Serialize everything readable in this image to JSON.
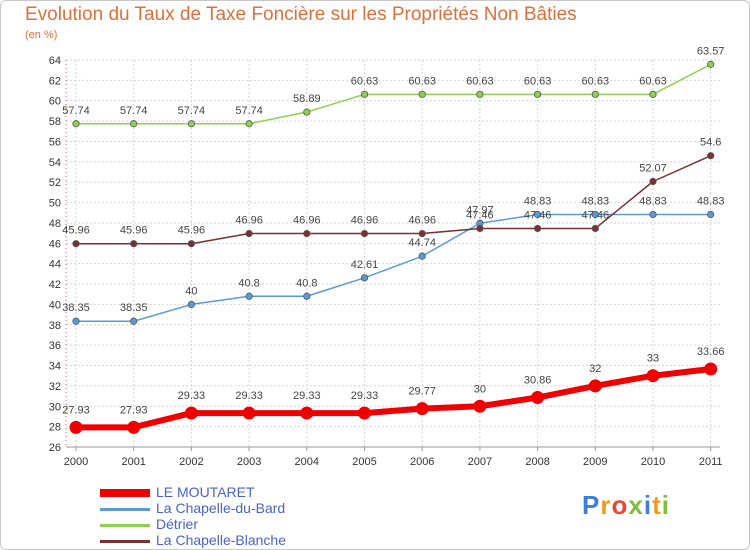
{
  "title": "Evolution du Taux de Taxe Foncière sur les Propriétés Non Bâties",
  "subtitle": "(en %)",
  "chart_data": {
    "type": "line",
    "title": "Evolution du Taux de Taxe Foncière sur les Propriétés Non Bâties",
    "ylabel": "(en %)",
    "xlabel": "",
    "x": [
      "2000",
      "2001",
      "2002",
      "2003",
      "2004",
      "2005",
      "2006",
      "2007",
      "2008",
      "2009",
      "2010",
      "2011"
    ],
    "ylim": [
      26,
      64
    ],
    "yticks": [
      "26",
      "28",
      "30",
      "32",
      "34",
      "36",
      "38",
      "40",
      "42",
      "44",
      "46",
      "48",
      "50",
      "52",
      "54",
      "56",
      "58",
      "60",
      "62",
      "64"
    ],
    "grid": true,
    "legend_position": "bottom-left",
    "series": [
      {
        "name": "LE MOUTARET",
        "color": "#ee0000",
        "values": [
          27.93,
          27.93,
          29.33,
          29.33,
          29.33,
          29.33,
          29.77,
          30,
          30.86,
          32,
          33,
          33.66
        ],
        "labels": [
          "27.93",
          "27.93",
          "29.33",
          "29.33",
          "29.33",
          "29.33",
          "29.77",
          "30",
          "30.86",
          "32",
          "33",
          "33.66"
        ]
      },
      {
        "name": "La Chapelle-du-Bard",
        "color": "#5b9bd5",
        "values": [
          38.35,
          38.35,
          40,
          40.8,
          40.8,
          42.61,
          44.74,
          47.97,
          48.83,
          48.83,
          48.83,
          48.83
        ],
        "labels": [
          "38.35",
          "38.35",
          "40",
          "40.8",
          "40.8",
          "42.61",
          "44.74",
          "47.97",
          "48.83",
          "48.83",
          "48.83",
          "48.83"
        ]
      },
      {
        "name": "Détrier",
        "color": "#8ed14f",
        "values": [
          57.74,
          57.74,
          57.74,
          57.74,
          58.89,
          60.63,
          60.63,
          60.63,
          60.63,
          60.63,
          60.63,
          63.57
        ],
        "labels": [
          "57.74",
          "57.74",
          "57.74",
          "57.74",
          "58.89",
          "60.63",
          "60.63",
          "60.63",
          "60.63",
          "60.63",
          "60.63",
          "63.57"
        ]
      },
      {
        "name": "La Chapelle-Blanche",
        "color": "#7b2f32",
        "values": [
          45.96,
          45.96,
          45.96,
          46.96,
          46.96,
          46.96,
          46.96,
          47.46,
          47.46,
          47.46,
          52.07,
          54.6
        ],
        "labels": [
          "45.96",
          "45.96",
          "45.96",
          "46.96",
          "46.96",
          "46.96",
          "46.96",
          "47.46",
          "47.46",
          "47.46",
          "52.07",
          "54.6"
        ]
      }
    ]
  },
  "logo": {
    "letters": [
      "P",
      "r",
      "o",
      "x",
      "i",
      "t",
      "i"
    ],
    "colors": [
      "#3a7fd8",
      "#f29a1f",
      "#e8483b",
      "#7fbf3a",
      "#3a7fd8",
      "#f29a1f",
      "#7fbf3a"
    ]
  }
}
